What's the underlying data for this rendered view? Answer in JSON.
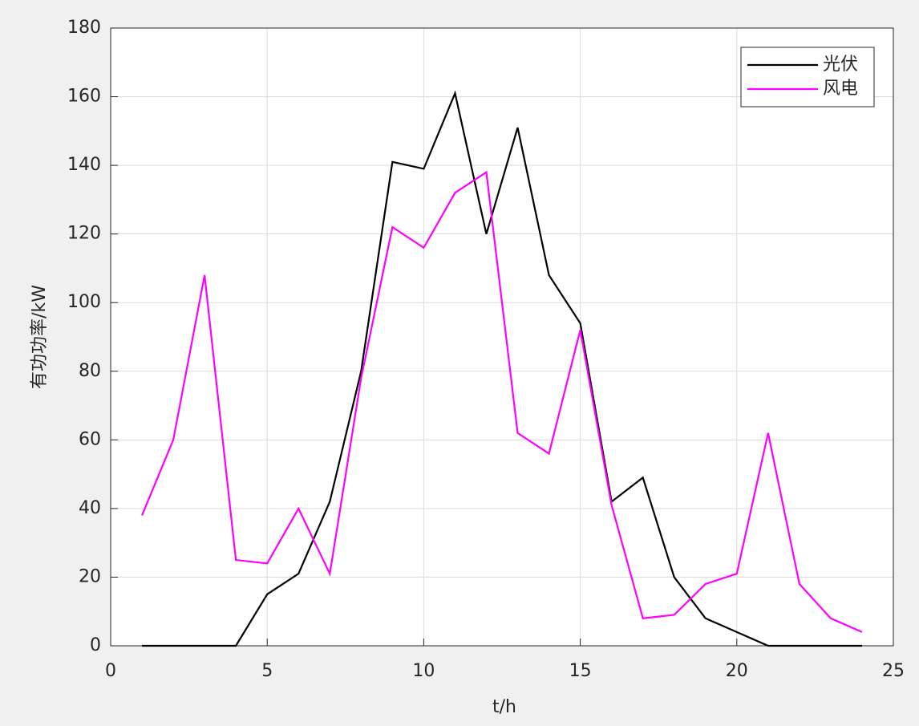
{
  "chart_data": {
    "type": "line",
    "x": [
      1,
      2,
      3,
      4,
      5,
      6,
      7,
      8,
      9,
      10,
      11,
      12,
      13,
      14,
      15,
      16,
      17,
      18,
      19,
      20,
      21,
      22,
      23,
      24
    ],
    "series": [
      {
        "name": "光伏",
        "color": "#000000",
        "values": [
          0,
          0,
          0,
          0,
          15,
          21,
          42,
          80,
          141,
          139,
          161,
          120,
          151,
          108,
          94,
          42,
          49,
          20,
          8,
          4,
          0,
          0,
          0,
          0
        ]
      },
      {
        "name": "风电",
        "color": "#ff00ff",
        "values": [
          38,
          60,
          108,
          25,
          24,
          40,
          21,
          78,
          122,
          116,
          132,
          138,
          62,
          56,
          92,
          41,
          8,
          9,
          18,
          21,
          62,
          18,
          8,
          4
        ]
      }
    ],
    "xlabel": "t/h",
    "ylabel": "有功功率/kW",
    "xlim": [
      0,
      25
    ],
    "xticks": [
      0,
      5,
      10,
      15,
      20,
      25
    ],
    "ylim": [
      0,
      180
    ],
    "yticks": [
      0,
      20,
      40,
      60,
      80,
      100,
      120,
      140,
      160,
      180
    ],
    "grid": true,
    "legend": "upper right"
  }
}
